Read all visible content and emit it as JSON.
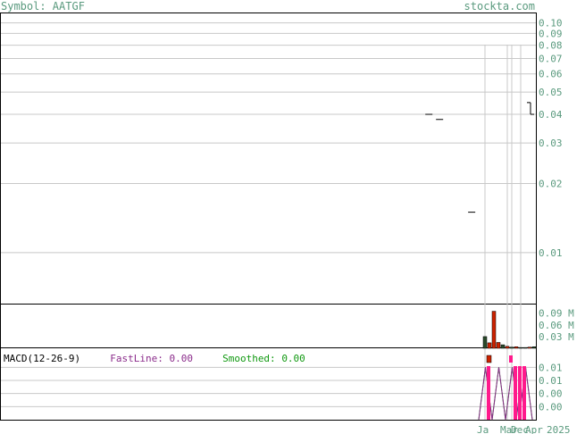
{
  "header": {
    "symbol": "Symbol: AATGF",
    "site": "stockta.com"
  },
  "macd": {
    "title": "MACD(12-26-9)",
    "fast_label": "FastLine:",
    "fast_value": "0.00",
    "smooth_label": "Smoothed:",
    "smooth_value": "0.00"
  },
  "colors": {
    "axis_text": "#5a9a7e",
    "volume_up": "#cc2200",
    "volume_down": "#2a4a2a",
    "macd_hist": "#ff1a8c",
    "fast_line": "#8b2c8b",
    "smooth_line": "#119911",
    "grid": "#c8c8c8"
  },
  "chart_data": [
    {
      "type": "candlestick",
      "scale": "log",
      "ylim": [
        0.006,
        0.11
      ],
      "y_ticks": [
        "0.10",
        "0.09",
        "0.08",
        "0.07",
        "0.06",
        "0.05",
        "0.04",
        "0.03",
        "0.02",
        "0.01"
      ],
      "y_tick_values": [
        0.1,
        0.09,
        0.08,
        0.07,
        0.06,
        0.05,
        0.04,
        0.03,
        0.02,
        0.01
      ],
      "x_ticks": [
        "Ja",
        "Mar",
        "Dec",
        "Apr",
        "2025"
      ],
      "bars": [
        {
          "x": 0.8,
          "close": 0.04
        },
        {
          "x": 0.82,
          "close": 0.038
        },
        {
          "x": 0.88,
          "close": 0.015
        },
        {
          "x": 0.99,
          "open": 0.045,
          "high": 0.045,
          "low": 0.04,
          "close": 0.04
        }
      ]
    },
    {
      "type": "bar",
      "name": "volume",
      "y_ticks": [
        "0.09 M",
        "0.06 M",
        "0.03 M"
      ],
      "y_tick_values": [
        0.09,
        0.06,
        0.03
      ],
      "ylim": [
        0,
        0.11
      ],
      "values_M": [
        0.03,
        0.014,
        0.095,
        0.015,
        0.009,
        0.005,
        0.003,
        0.004,
        0.002,
        0.002,
        0.003,
        0.004
      ],
      "colors": [
        "down",
        "up",
        "up",
        "up",
        "down",
        "up",
        "down",
        "up",
        "down",
        "down",
        "up",
        "down"
      ]
    },
    {
      "type": "line",
      "name": "MACD",
      "y_ticks": [
        "0.01",
        "0.01",
        "0.00",
        "0.00"
      ],
      "y_tick_values": [
        0.012,
        0.006,
        0.0,
        -0.006
      ],
      "ylim": [
        -0.012,
        0.015
      ],
      "fast": [
        -0.012,
        0.012,
        -0.012,
        0.012,
        -0.012,
        0.012,
        -0.012,
        0.012,
        -0.012
      ],
      "smoothed": [
        -0.012,
        0.012,
        -0.012,
        0.012,
        -0.012,
        0.012,
        -0.012,
        0.012,
        -0.012
      ],
      "histogram": [
        0.012,
        -0.002,
        0.004,
        0.012,
        0.01
      ]
    }
  ]
}
